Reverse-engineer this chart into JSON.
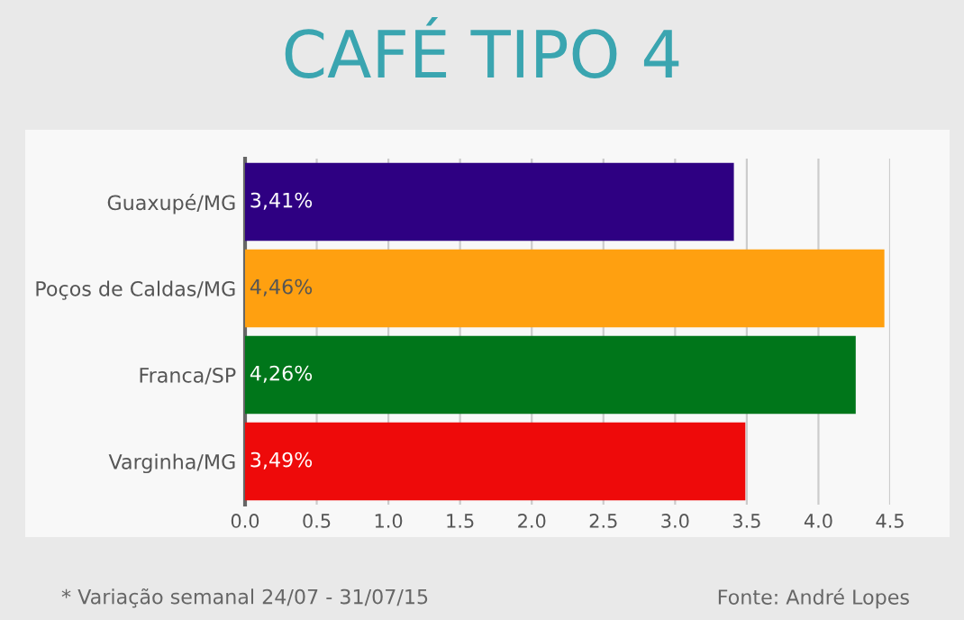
{
  "chart_data": {
    "type": "bar",
    "orientation": "horizontal",
    "title": "CAFÉ TIPO 4",
    "categories": [
      "Guaxupé/MG",
      "Poços de Caldas/MG",
      "Franca/SP",
      "Varginha/MG"
    ],
    "values": [
      3.41,
      4.46,
      4.26,
      3.49
    ],
    "colors": [
      "#2e0082",
      "#ffa010",
      "#00761a",
      "#ee0a0a"
    ],
    "value_labels": [
      "3,41%",
      "4,46%",
      "4,26%",
      "3,49%"
    ],
    "xlim": [
      0,
      4.5
    ],
    "xticks": [
      {
        "value": 0,
        "label": "0.0"
      },
      0.5,
      {
        "value": 1,
        "label": "1.0"
      },
      1.5,
      {
        "value": 2,
        "label": "2.0"
      },
      2.5,
      {
        "value": 3,
        "label": "3.0"
      },
      3.5,
      {
        "value": 4,
        "label": "4.0"
      },
      4.5
    ],
    "grid": "x",
    "legend": false,
    "annotations": [
      "* Variação semanal 24/07 - 31/07/15",
      "Fonte: André Lopes"
    ]
  }
}
